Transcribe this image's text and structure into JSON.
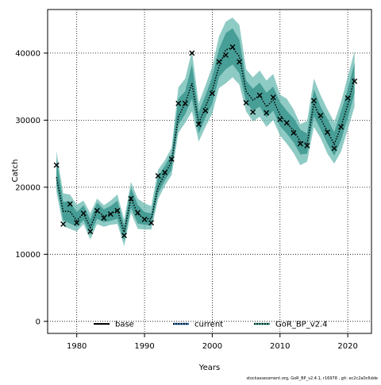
{
  "chart_data": {
    "type": "line",
    "xlabel": "Years",
    "ylabel": "Catch",
    "xlim": [
      1975.7,
      2023.5
    ],
    "ylim": [
      -1800,
      46500
    ],
    "xticks": [
      1980,
      1990,
      2000,
      2010,
      2020
    ],
    "yticks": [
      0,
      10000,
      20000,
      30000,
      40000
    ],
    "grid": true,
    "legend_position": "bottom",
    "legend": [
      {
        "label": "base",
        "style": "solid",
        "color": "#000000"
      },
      {
        "label": "current",
        "style": "dotted",
        "color": "#000000",
        "band": "#1f6fb5"
      },
      {
        "label": "GoR_BP_v2.4",
        "style": "dotted",
        "color": "#000000",
        "band": "#2a9a86"
      }
    ],
    "x": [
      1977,
      1978,
      1979,
      1980,
      1981,
      1982,
      1983,
      1984,
      1985,
      1986,
      1987,
      1988,
      1989,
      1990,
      1991,
      1992,
      1993,
      1994,
      1995,
      1996,
      1997,
      1998,
      1999,
      2000,
      2001,
      2002,
      2003,
      2004,
      2005,
      2006,
      2007,
      2008,
      2009,
      2010,
      2011,
      2012,
      2013,
      2014,
      2015,
      2016,
      2017,
      2018,
      2019,
      2020,
      2021
    ],
    "observed": [
      23300,
      14500,
      17500,
      14700,
      16100,
      13400,
      16500,
      15400,
      16000,
      16500,
      12800,
      18300,
      16200,
      15200,
      14700,
      21700,
      22200,
      24200,
      32500,
      32500,
      40000,
      29400,
      31400,
      34000,
      38700,
      39700,
      40900,
      38700,
      32600,
      31200,
      33700,
      31100,
      33400,
      30100,
      29600,
      28100,
      26500,
      26200,
      32900,
      30700,
      28200,
      25800,
      29000,
      33300,
      35800
    ],
    "series": [
      {
        "name": "GoR_BP_v2.4",
        "values": [
          21500,
          16400,
          16400,
          15000,
          16100,
          14000,
          16500,
          15700,
          16000,
          16600,
          13300,
          18400,
          16000,
          15300,
          15300,
          20000,
          22000,
          23800,
          30500,
          32500,
          35500,
          29500,
          32000,
          34500,
          38000,
          40500,
          40800,
          39500,
          34300,
          33000,
          33700,
          32000,
          33000,
          30800,
          29500,
          28500,
          26800,
          26500,
          32500,
          30200,
          28300,
          26400,
          29000,
          32300,
          36200
        ]
      }
    ],
    "band_outer": {
      "lower": [
        19300,
        14200,
        13800,
        13400,
        14500,
        12200,
        14500,
        14100,
        14400,
        14500,
        11200,
        16200,
        13800,
        13700,
        13700,
        18200,
        20200,
        21800,
        28100,
        29600,
        31300,
        26800,
        29000,
        31000,
        34800,
        35500,
        36400,
        35300,
        31300,
        29800,
        30500,
        29000,
        30000,
        27700,
        26500,
        25100,
        23300,
        23800,
        29000,
        27300,
        25000,
        23500,
        25300,
        28600,
        32000
      ],
      "upper": [
        25400,
        19100,
        18900,
        17400,
        18000,
        16100,
        18300,
        17300,
        18000,
        18900,
        15200,
        20800,
        18300,
        17600,
        17200,
        22600,
        24000,
        25900,
        34900,
        36200,
        40300,
        32500,
        35200,
        38000,
        42500,
        44700,
        45300,
        44200,
        37600,
        36400,
        37400,
        35900,
        36900,
        33800,
        33200,
        31600,
        29400,
        29900,
        36200,
        33700,
        31600,
        29700,
        32700,
        36500,
        40300
      ]
    },
    "band_inner": {
      "lower": [
        20300,
        15100,
        14600,
        14100,
        15100,
        12900,
        15300,
        14800,
        15000,
        15300,
        12000,
        17000,
        14600,
        14400,
        14300,
        19000,
        21000,
        22600,
        29300,
        30900,
        33200,
        28000,
        30400,
        32500,
        36400,
        37600,
        38300,
        37000,
        32700,
        31400,
        32000,
        30400,
        31400,
        29100,
        28000,
        26700,
        24900,
        25000,
        30600,
        28600,
        26500,
        24700,
        27000,
        30300,
        34000
      ],
      "upper": [
        24300,
        17800,
        17900,
        16300,
        17300,
        15200,
        17700,
        16700,
        17200,
        18000,
        14300,
        19900,
        17400,
        16300,
        16100,
        21600,
        23200,
        25000,
        33200,
        34300,
        38300,
        31200,
        33700,
        36500,
        40600,
        43000,
        43700,
        42000,
        35900,
        34700,
        35600,
        34100,
        35000,
        32700,
        31400,
        30300,
        28600,
        28000,
        34600,
        32000,
        30200,
        28200,
        31300,
        34600,
        38600
      ]
    }
  },
  "credit": "stockassessment.org,  GoR_BP_v2.4.1, r16978 ,  git: ec2c2a0c6dde"
}
